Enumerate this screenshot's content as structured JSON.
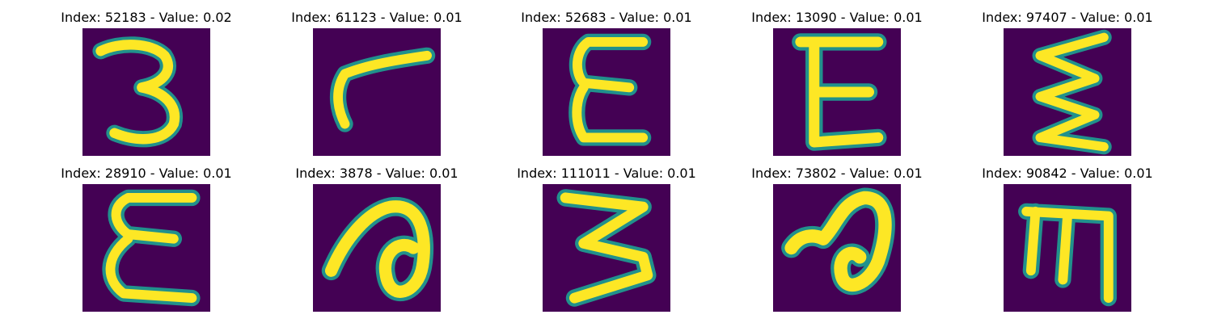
{
  "figure": {
    "colormap": [
      "#440154",
      "#3b528b",
      "#21918c",
      "#5ec962",
      "#fde725"
    ],
    "panels": [
      {
        "title": "Index: 52183 - Value: 0.02",
        "glyph": "three-icon"
      },
      {
        "title": "Index: 61123 - Value: 0.01",
        "glyph": "hook-icon"
      },
      {
        "title": "Index: 52683 - Value: 0.01",
        "glyph": "epsilon-icon"
      },
      {
        "title": "Index: 13090 - Value: 0.01",
        "glyph": "letter-e-icon"
      },
      {
        "title": "Index: 97407 - Value: 0.01",
        "glyph": "zigzag-icon"
      },
      {
        "title": "Index: 28910 - Value: 0.01",
        "glyph": "epsilon-icon"
      },
      {
        "title": "Index: 3878 - Value: 0.01",
        "glyph": "loop-icon"
      },
      {
        "title": "Index: 111011 - Value: 0.01",
        "glyph": "zigzag-icon"
      },
      {
        "title": "Index: 73802 - Value: 0.01",
        "glyph": "loop-icon"
      },
      {
        "title": "Index: 90842 - Value: 0.01",
        "glyph": "rotated-m-icon"
      }
    ]
  }
}
